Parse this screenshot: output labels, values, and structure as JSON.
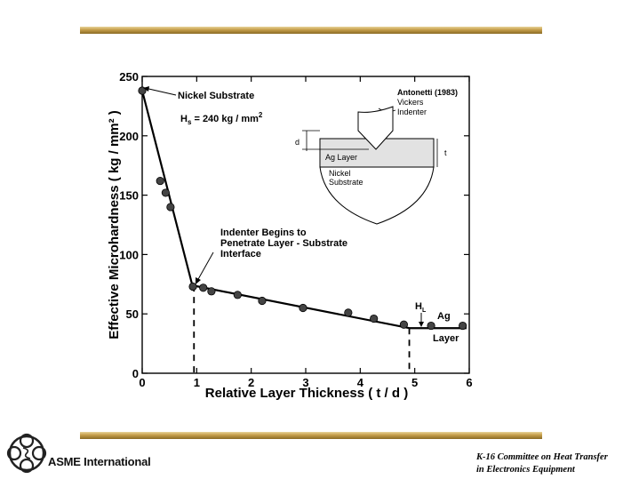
{
  "footer": {
    "logo_text": "ASME International",
    "committee_line1": "K-16 Committee on Heat Transfer",
    "committee_line2": "in Electronics Equipment"
  },
  "colors": {
    "rule": "#c9a24f",
    "ink": "#000000",
    "inset_fill": "#e0e0e0"
  },
  "icons": {
    "logo": "asme-emblem-icon"
  },
  "chart_data": {
    "type": "scatter",
    "xlabel": "Relative Layer Thickness  ( t / d )",
    "ylabel": "Effective Microhardness  ( kg / mm² )",
    "xlim": [
      0,
      6
    ],
    "ylim": [
      0,
      250
    ],
    "xticks": [
      0,
      1,
      2,
      3,
      4,
      5,
      6
    ],
    "yticks": [
      0,
      50,
      100,
      150,
      200,
      250
    ],
    "series": [
      {
        "type": "scatter",
        "x": [
          0.0,
          0.33,
          0.43,
          0.52,
          0.93,
          1.12,
          1.27,
          1.75,
          2.2,
          2.95,
          3.78,
          4.25,
          4.8,
          5.3,
          5.88
        ],
        "y": [
          238,
          162,
          152,
          140,
          73,
          72,
          69,
          66,
          61,
          55,
          51,
          46,
          41,
          40,
          40
        ]
      },
      {
        "type": "line",
        "x": [
          0.0,
          0.92,
          4.9,
          5.95
        ],
        "y": [
          238,
          74,
          38,
          38
        ]
      }
    ],
    "dashed_markers": [
      {
        "x": 0.95,
        "y_top": 74
      },
      {
        "x": 4.9,
        "y_top": 38
      }
    ],
    "annotations": {
      "nickel_substrate": "Nickel Substrate",
      "hs_main": "H",
      "hs_sub": "s",
      "hs_rest": " = 240 kg / mm",
      "hs_sup": "2",
      "indenter_line1": "Indenter Begins to",
      "indenter_line2": "Penetrate Layer - Substrate",
      "indenter_line3": "Interface",
      "hl_main": "H",
      "hl_sub": "L",
      "ag": "Ag",
      "layer": "Layer"
    },
    "inset": {
      "source": "Antonetti (1983)",
      "vickers": "Vickers",
      "indenter": "Indenter",
      "d": "d",
      "t": "t",
      "ag_layer": "Ag Layer",
      "nickel": "Nickel",
      "substrate": "Substrate"
    }
  }
}
